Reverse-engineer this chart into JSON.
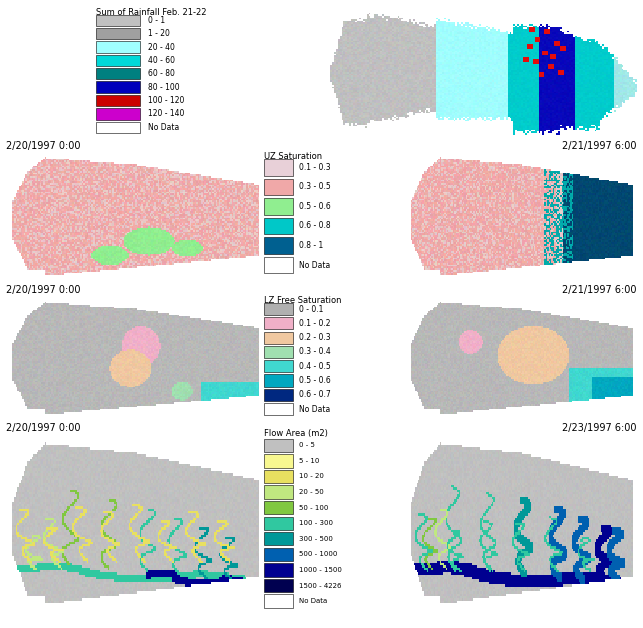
{
  "rainfall_legend": {
    "title": "Sum of Rainfall Feb. 21-22",
    "labels": [
      "0 - 1",
      "1 - 20",
      "20 - 40",
      "40 - 60",
      "60 - 80",
      "80 - 100",
      "100 - 120",
      "120 - 140",
      "No Data"
    ],
    "colors": [
      "#c0c0c0",
      "#a0a0a0",
      "#a0ffff",
      "#00d8d8",
      "#008080",
      "#0000bb",
      "#cc0000",
      "#cc00cc",
      "#ffffff"
    ]
  },
  "uz_legend": {
    "title": "UZ Saturation",
    "labels": [
      "0.1 - 0.3",
      "0.3 - 0.5",
      "0.5 - 0.6",
      "0.6 - 0.8",
      "0.8 - 1",
      "No Data"
    ],
    "colors": [
      "#e8d0d8",
      "#f0a8a8",
      "#90ee90",
      "#00c8c8",
      "#006090",
      "#ffffff"
    ]
  },
  "lz_legend": {
    "title": "LZ Free Saturation",
    "labels": [
      "0 - 0.1",
      "0.1 - 0.2",
      "0.2 - 0.3",
      "0.3 - 0.4",
      "0.4 - 0.5",
      "0.5 - 0.6",
      "0.6 - 0.7",
      "No Data"
    ],
    "colors": [
      "#b0b0b0",
      "#f0b0c8",
      "#f0c8a0",
      "#a0e0b0",
      "#40d8d0",
      "#00a8c0",
      "#002880",
      "#ffffff"
    ]
  },
  "flow_legend": {
    "title": "Flow Area (m2)",
    "labels": [
      "0 - 5",
      "5 - 10",
      "10 - 20",
      "20 - 50",
      "50 - 100",
      "100 - 300",
      "300 - 500",
      "500 - 1000",
      "1000 - 1500",
      "1500 - 4226",
      "No Data"
    ],
    "colors": [
      "#c0c0c0",
      "#f8f890",
      "#e8e060",
      "#c0e880",
      "#80c840",
      "#30c8a0",
      "#009898",
      "#0060b0",
      "#000090",
      "#000050",
      "#ffffff"
    ]
  },
  "panel_labels": {
    "row2_left": "2/20/1997 0:00",
    "row2_right": "2/21/1997 6:00",
    "row3_left": "2/20/1997 0:00",
    "row3_right": "2/21/1997 6:00",
    "row4_left": "2/20/1997 0:00",
    "row4_right": "2/23/1997 6:00"
  }
}
